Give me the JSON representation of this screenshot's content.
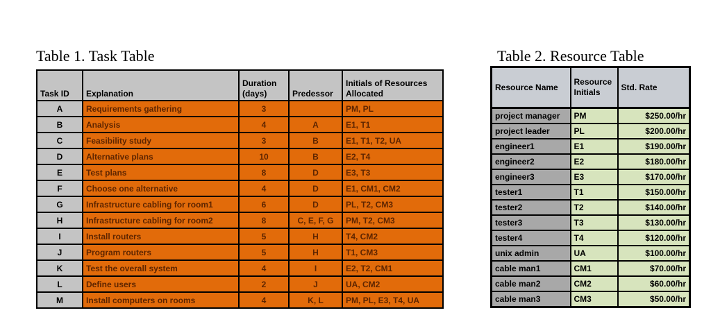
{
  "colors": {
    "task_fill_orange": "#e26b0a",
    "task_text_brown": "#5e2500",
    "header_gray": "#c4c4c4",
    "resource_name_gray": "#a8a8a8",
    "resource_fill_green": "#d7e4bd",
    "border_black": "#000000",
    "page_background": "#ffffff"
  },
  "table1": {
    "title": "Table 1. Task Table",
    "headers": {
      "task_id": "Task ID",
      "explanation": "Explanation",
      "duration": "Duration\n(days)",
      "predecessor": "Predessor",
      "initials": "Initials of Resources Allocated"
    },
    "rows": [
      {
        "id": "A",
        "explanation": "Requirements gathering",
        "duration": "3",
        "predecessor": "",
        "initials": "PM, PL"
      },
      {
        "id": "B",
        "explanation": "Analysis",
        "duration": "4",
        "predecessor": "A",
        "initials": "E1, T1"
      },
      {
        "id": "C",
        "explanation": "Feasibility study",
        "duration": "3",
        "predecessor": "B",
        "initials": "E1, T1, T2, UA"
      },
      {
        "id": "D",
        "explanation": "Alternative plans",
        "duration": "10",
        "predecessor": "B",
        "initials": "E2, T4"
      },
      {
        "id": "E",
        "explanation": "Test plans",
        "duration": "8",
        "predecessor": "D",
        "initials": "E3, T3"
      },
      {
        "id": "F",
        "explanation": "Choose one alternative",
        "duration": "4",
        "predecessor": "D",
        "initials": "E1, CM1, CM2"
      },
      {
        "id": "G",
        "explanation": "Infrastructure cabling for room1",
        "duration": "6",
        "predecessor": "D",
        "initials": "PL, T2, CM3"
      },
      {
        "id": "H",
        "explanation": "Infrastructure cabling for room2",
        "duration": "8",
        "predecessor": "C, E, F, G",
        "initials": "PM, T2, CM3"
      },
      {
        "id": "I",
        "explanation": "Install routers",
        "duration": "5",
        "predecessor": "H",
        "initials": "T4, CM2"
      },
      {
        "id": "J",
        "explanation": "Program routers",
        "duration": "5",
        "predecessor": "H",
        "initials": "T1, CM3"
      },
      {
        "id": "K",
        "explanation": "Test the overall system",
        "duration": "4",
        "predecessor": "I",
        "initials": "E2, T2, CM1"
      },
      {
        "id": "L",
        "explanation": "Define users",
        "duration": "2",
        "predecessor": "J",
        "initials": "UA, CM2"
      },
      {
        "id": "M",
        "explanation": "Install computers on rooms",
        "duration": "4",
        "predecessor": "K, L",
        "initials": "PM, PL, E3, T4, UA"
      }
    ]
  },
  "table2": {
    "title": "Table 2. Resource Table",
    "headers": {
      "name": "Resource Name",
      "initials": "Resource Initials",
      "rate": "Std. Rate"
    },
    "rows": [
      {
        "name": "project manager",
        "initials": "PM",
        "rate": "$250.00/hr"
      },
      {
        "name": "project leader",
        "initials": "PL",
        "rate": "$200.00/hr"
      },
      {
        "name": "engineer1",
        "initials": "E1",
        "rate": "$190.00/hr"
      },
      {
        "name": "engineer2",
        "initials": "E2",
        "rate": "$180.00/hr"
      },
      {
        "name": "engineer3",
        "initials": "E3",
        "rate": "$170.00/hr"
      },
      {
        "name": "tester1",
        "initials": "T1",
        "rate": "$150.00/hr"
      },
      {
        "name": "tester2",
        "initials": "T2",
        "rate": "$140.00/hr"
      },
      {
        "name": "tester3",
        "initials": "T3",
        "rate": "$130.00/hr"
      },
      {
        "name": "tester4",
        "initials": "T4",
        "rate": "$120.00/hr"
      },
      {
        "name": "unix admin",
        "initials": "UA",
        "rate": "$100.00/hr"
      },
      {
        "name": "cable man1",
        "initials": "CM1",
        "rate": "$70.00/hr"
      },
      {
        "name": "cable man2",
        "initials": "CM2",
        "rate": "$60.00/hr"
      },
      {
        "name": "cable man3",
        "initials": "CM3",
        "rate": "$50.00/hr"
      }
    ]
  }
}
